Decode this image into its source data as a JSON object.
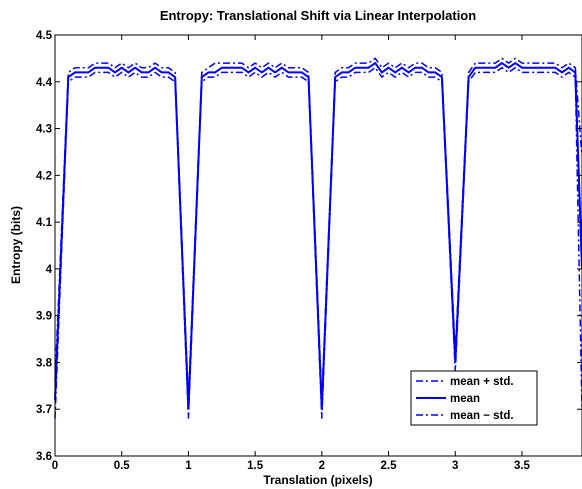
{
  "chart_data": {
    "type": "line",
    "title": "Entropy: Translational Shift via Linear Interpolation",
    "xlabel": "Translation (pixels)",
    "ylabel": "Entropy (bits)",
    "xlim": [
      0,
      3.95
    ],
    "ylim": [
      3.6,
      4.5
    ],
    "xticks": [
      0,
      0.5,
      1,
      1.5,
      2,
      2.5,
      3,
      3.5
    ],
    "xtick_labels": [
      "0",
      "0.5",
      "1",
      "1.5",
      "2",
      "2.5",
      "3",
      "3.5"
    ],
    "yticks": [
      3.6,
      3.7,
      3.8,
      3.9,
      4.0,
      4.1,
      4.2,
      4.3,
      4.4,
      4.5
    ],
    "ytick_labels": [
      "3.6",
      "3.7",
      "3.8",
      "3.9",
      "4",
      "4.1",
      "4.2",
      "4.3",
      "4.4",
      "4.5"
    ],
    "grid": false,
    "legend_position": "lower-right",
    "color": "#0000ff",
    "x": [
      0.0,
      0.1,
      0.15,
      0.2,
      0.25,
      0.3,
      0.35,
      0.4,
      0.45,
      0.5,
      0.55,
      0.6,
      0.65,
      0.7,
      0.75,
      0.8,
      0.85,
      0.9,
      1.0,
      1.1,
      1.15,
      1.2,
      1.25,
      1.3,
      1.35,
      1.4,
      1.45,
      1.5,
      1.55,
      1.6,
      1.65,
      1.7,
      1.75,
      1.8,
      1.85,
      1.9,
      2.0,
      2.1,
      2.15,
      2.2,
      2.25,
      2.3,
      2.35,
      2.4,
      2.45,
      2.5,
      2.55,
      2.6,
      2.65,
      2.7,
      2.75,
      2.8,
      2.85,
      2.9,
      3.0,
      3.1,
      3.15,
      3.2,
      3.25,
      3.3,
      3.35,
      3.4,
      3.45,
      3.5,
      3.55,
      3.6,
      3.65,
      3.7,
      3.75,
      3.8,
      3.85,
      3.9,
      3.95
    ],
    "series": [
      {
        "name": "mean + std.",
        "style": "dashdot",
        "values": [
          3.76,
          4.42,
          4.43,
          4.43,
          4.43,
          4.44,
          4.44,
          4.44,
          4.43,
          4.44,
          4.43,
          4.44,
          4.43,
          4.43,
          4.44,
          4.43,
          4.43,
          4.42,
          3.72,
          4.42,
          4.43,
          4.44,
          4.44,
          4.44,
          4.44,
          4.44,
          4.43,
          4.44,
          4.43,
          4.44,
          4.43,
          4.44,
          4.43,
          4.43,
          4.43,
          4.42,
          3.72,
          4.42,
          4.43,
          4.43,
          4.44,
          4.44,
          4.44,
          4.45,
          4.43,
          4.44,
          4.43,
          4.44,
          4.43,
          4.44,
          4.44,
          4.43,
          4.43,
          4.42,
          3.82,
          4.42,
          4.44,
          4.44,
          4.44,
          4.44,
          4.45,
          4.44,
          4.45,
          4.44,
          4.44,
          4.44,
          4.44,
          4.44,
          4.44,
          4.43,
          4.44,
          4.43,
          4.24
        ]
      },
      {
        "name": "mean",
        "style": "solid",
        "values": [
          3.72,
          4.41,
          4.42,
          4.42,
          4.42,
          4.43,
          4.43,
          4.43,
          4.42,
          4.43,
          4.42,
          4.43,
          4.42,
          4.42,
          4.43,
          4.42,
          4.42,
          4.41,
          3.7,
          4.41,
          4.42,
          4.42,
          4.43,
          4.43,
          4.43,
          4.43,
          4.42,
          4.43,
          4.42,
          4.43,
          4.42,
          4.43,
          4.42,
          4.42,
          4.42,
          4.41,
          3.7,
          4.41,
          4.42,
          4.42,
          4.43,
          4.43,
          4.43,
          4.44,
          4.42,
          4.43,
          4.42,
          4.43,
          4.42,
          4.43,
          4.43,
          4.42,
          4.42,
          4.41,
          3.8,
          4.41,
          4.43,
          4.43,
          4.43,
          4.43,
          4.44,
          4.43,
          4.44,
          4.43,
          4.43,
          4.43,
          4.43,
          4.43,
          4.43,
          4.42,
          4.43,
          4.42,
          4.0
        ]
      },
      {
        "name": "mean − std.",
        "style": "dashdot",
        "values": [
          3.68,
          4.4,
          4.41,
          4.41,
          4.41,
          4.42,
          4.42,
          4.42,
          4.41,
          4.42,
          4.41,
          4.42,
          4.41,
          4.41,
          4.42,
          4.41,
          4.41,
          4.4,
          3.68,
          4.4,
          4.41,
          4.41,
          4.42,
          4.42,
          4.42,
          4.42,
          4.41,
          4.42,
          4.41,
          4.42,
          4.41,
          4.42,
          4.41,
          4.41,
          4.41,
          4.4,
          3.68,
          4.4,
          4.41,
          4.41,
          4.42,
          4.42,
          4.42,
          4.43,
          4.41,
          4.42,
          4.41,
          4.42,
          4.41,
          4.42,
          4.42,
          4.41,
          4.41,
          4.4,
          3.78,
          4.4,
          4.42,
          4.42,
          4.42,
          4.42,
          4.43,
          4.42,
          4.43,
          4.42,
          4.42,
          4.42,
          4.42,
          4.42,
          4.42,
          4.41,
          4.42,
          4.41,
          3.7
        ]
      }
    ]
  }
}
